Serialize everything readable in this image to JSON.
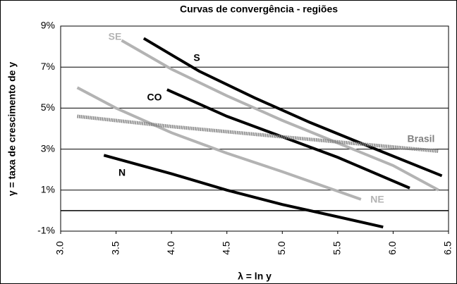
{
  "chart_data": {
    "type": "line",
    "title": "Curvas de convergência  - regiões",
    "xlabel": "λ = ln y",
    "ylabel": "γ = taxa de crescimento  de y",
    "xlim": [
      3.0,
      6.5
    ],
    "xticks": [
      {
        "value": 3,
        "label": "3.0"
      },
      3.5,
      {
        "value": 4,
        "label": "4.0"
      },
      4.5,
      {
        "value": 5,
        "label": "5.0"
      },
      5.5,
      {
        "value": 6,
        "label": "6.0"
      },
      6.5
    ],
    "ylim": [
      -1,
      9
    ],
    "yticks": [
      {
        "value": -1,
        "label": "-1%"
      },
      {
        "value": 1,
        "label": "1%"
      },
      {
        "value": 3,
        "label": "3%"
      },
      {
        "value": 5,
        "label": "5%"
      },
      {
        "value": 7,
        "label": "7%"
      },
      {
        "value": 9,
        "label": "9%"
      }
    ],
    "grid": true,
    "series": [
      {
        "name": "S",
        "color": "#000000",
        "x": [
          3.75,
          4.25,
          4.75,
          5.25,
          5.75,
          6.44
        ],
        "values": [
          8.4,
          6.8,
          5.5,
          4.3,
          3.2,
          1.7
        ]
      },
      {
        "name": "SE",
        "color": "#b3b3b3",
        "x": [
          3.55,
          4.0,
          4.5,
          5.0,
          5.5,
          6.0,
          6.41
        ],
        "values": [
          8.3,
          6.9,
          5.6,
          4.4,
          3.3,
          2.2,
          1.0
        ]
      },
      {
        "name": "CO",
        "color": "#000000",
        "x": [
          3.96,
          4.5,
          5.0,
          5.5,
          6.15
        ],
        "values": [
          5.9,
          4.6,
          3.6,
          2.6,
          1.1
        ]
      },
      {
        "name": "NE",
        "color": "#b3b3b3",
        "x": [
          3.15,
          3.5,
          4.0,
          4.5,
          5.0,
          5.71
        ],
        "values": [
          6.0,
          5.0,
          3.8,
          2.8,
          1.9,
          0.55
        ]
      },
      {
        "name": "N",
        "color": "#000000",
        "x": [
          3.39,
          4.0,
          4.5,
          5.0,
          5.5,
          5.91
        ],
        "values": [
          2.7,
          1.8,
          1.0,
          0.3,
          -0.3,
          -0.8
        ]
      },
      {
        "name": "Brasil",
        "color": "#808080",
        "dashed": true,
        "x": [
          3.15,
          4.0,
          5.0,
          6.41
        ],
        "values": [
          4.6,
          4.1,
          3.6,
          2.9
        ]
      }
    ]
  }
}
